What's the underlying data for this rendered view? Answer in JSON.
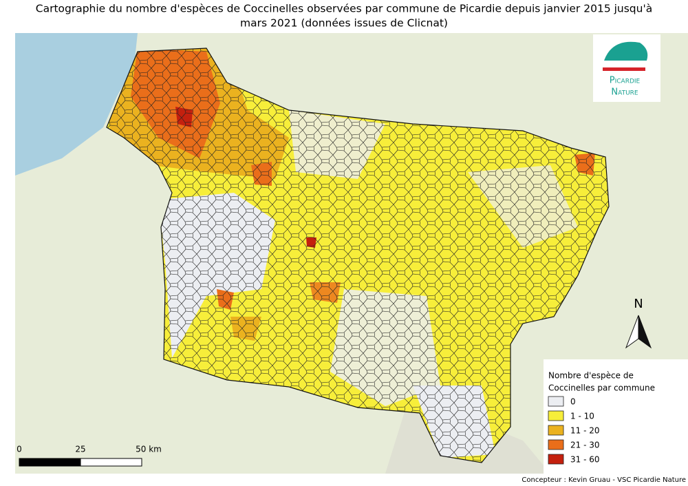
{
  "title_lines": [
    "Cartographie du nombre d'espèces de Coccinelles observées par commune de Picardie depuis janvier 2015 jusqu'à",
    "mars 2021 (données issues de Clicnat)"
  ],
  "logo": {
    "line1": "Picardie",
    "line2": "Nature"
  },
  "north": "N",
  "scale_bar": {
    "labels": [
      "0",
      "25",
      "50 km"
    ]
  },
  "legend": {
    "title_lines": [
      "Nombre d'espèce de",
      "Coccinelles par commune"
    ],
    "items": [
      {
        "label": "0",
        "color": "#eceef2"
      },
      {
        "label": "1 - 10",
        "color": "#f7ee3a"
      },
      {
        "label": "11 - 20",
        "color": "#ebb21f"
      },
      {
        "label": "21 - 30",
        "color": "#ea6e1a"
      },
      {
        "label": "31 - 60",
        "color": "#c4200e"
      }
    ]
  },
  "credit": "Concepteur : Kevin Gruau - VSC Picardie Nature"
}
